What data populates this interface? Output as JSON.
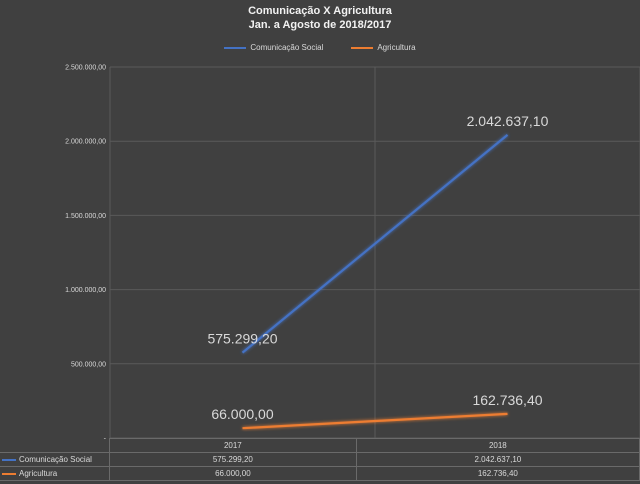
{
  "chart_data": {
    "type": "line",
    "title": "Comunicação X Agricultura",
    "subtitle": "Jan. a Agosto de 2018/2017",
    "categories": [
      "2017",
      "2018"
    ],
    "series": [
      {
        "name": "Comunicação Social",
        "values": [
          575299.2,
          2042637.1
        ],
        "labels": [
          "575.299,20",
          "2.042.637,10"
        ],
        "color": "#4472c4"
      },
      {
        "name": "Agricultura",
        "values": [
          66000.0,
          162736.4
        ],
        "labels": [
          "66.000,00",
          "162.736,40"
        ],
        "color": "#ed7d31"
      }
    ],
    "ylim": [
      0,
      2500000
    ],
    "y_ticks": [
      {
        "value": 0,
        "label": "-"
      },
      {
        "value": 500000,
        "label": "500.000,00"
      },
      {
        "value": 1000000,
        "label": "1.000.000,00"
      },
      {
        "value": 1500000,
        "label": "1.500.000,00"
      },
      {
        "value": 2000000,
        "label": "2.000.000,00"
      },
      {
        "value": 2500000,
        "label": "2.500.000,00"
      }
    ],
    "grid": true,
    "legend": "top-center",
    "data_table": true
  }
}
